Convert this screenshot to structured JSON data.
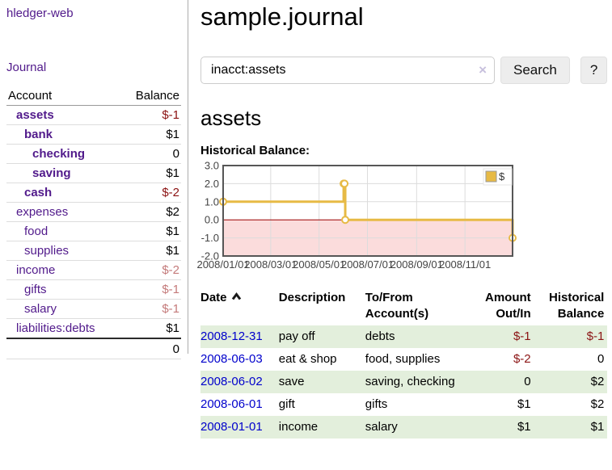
{
  "app": {
    "brand": "hledger-web"
  },
  "sidebar": {
    "journal_link": "Journal",
    "accounts": {
      "header_account": "Account",
      "header_balance": "Balance",
      "rows": [
        {
          "name": "assets",
          "balance": "$-1"
        },
        {
          "name": "bank",
          "balance": "$1"
        },
        {
          "name": "checking",
          "balance": "0"
        },
        {
          "name": "saving",
          "balance": "$1"
        },
        {
          "name": "cash",
          "balance": "$-2"
        },
        {
          "name": "expenses",
          "balance": "$2"
        },
        {
          "name": "food",
          "balance": "$1"
        },
        {
          "name": "supplies",
          "balance": "$1"
        },
        {
          "name": "income",
          "balance": "$-2"
        },
        {
          "name": "gifts",
          "balance": "$-1"
        },
        {
          "name": "salary",
          "balance": "$-1"
        },
        {
          "name": "liabilities:debts",
          "balance": "$1"
        }
      ],
      "total": "0"
    }
  },
  "header": {
    "title": "sample.journal"
  },
  "search": {
    "query": "inacct:assets",
    "clear_label": "×",
    "button": "Search",
    "help_button": "?"
  },
  "account_page": {
    "heading": "assets",
    "chart_label": "Historical Balance:"
  },
  "register": {
    "headers": {
      "date": "Date",
      "description": "Description",
      "accounts": "To/From Account(s)",
      "amount": "Amount Out/In",
      "balance": "Historical Balance"
    },
    "rows": [
      {
        "date": "2008-12-31",
        "description": "pay off",
        "accounts": "debts",
        "amount": "$-1",
        "balance": "$-1"
      },
      {
        "date": "2008-06-03",
        "description": "eat & shop",
        "accounts": "food, supplies",
        "amount": "$-2",
        "balance": "0"
      },
      {
        "date": "2008-06-02",
        "description": "save",
        "accounts": "saving, checking",
        "amount": "0",
        "balance": "$2"
      },
      {
        "date": "2008-06-01",
        "description": "gift",
        "accounts": "gifts",
        "amount": "$1",
        "balance": "$2"
      },
      {
        "date": "2008-01-01",
        "description": "income",
        "accounts": "salary",
        "amount": "$1",
        "balance": "$1"
      }
    ]
  },
  "chart_data": {
    "type": "line",
    "step": true,
    "title": "Historical Balance",
    "xlabel": "",
    "ylabel": "",
    "ylim": [
      -2,
      3
    ],
    "xlim_days": [
      0,
      365
    ],
    "y_ticks": [
      "3.0",
      "2.0",
      "1.0",
      "0.0",
      "-1.0",
      "-2.0"
    ],
    "x_ticks": [
      {
        "d": 0,
        "label": "2008/01/01"
      },
      {
        "d": 60,
        "label": "2008/03/01"
      },
      {
        "d": 121,
        "label": "2008/05/01"
      },
      {
        "d": 182,
        "label": "2008/07/01"
      },
      {
        "d": 244,
        "label": "2008/09/01"
      },
      {
        "d": 305,
        "label": "2008/11/01"
      }
    ],
    "series": [
      {
        "name": "$",
        "color": "#e7ba45",
        "points": [
          {
            "date": "2008-01-01",
            "d": 0,
            "v": 1
          },
          {
            "date": "2008-06-01",
            "d": 152,
            "v": 2
          },
          {
            "date": "2008-06-02",
            "d": 153,
            "v": 2
          },
          {
            "date": "2008-06-03",
            "d": 154,
            "v": 0
          },
          {
            "date": "2008-12-31",
            "d": 365,
            "v": -1
          }
        ]
      }
    ],
    "legend": "$",
    "legend_position": "top-right",
    "grid": true,
    "negative_fill": "#fbdcdc",
    "zero_line_color": "#990000",
    "border_color": "#565656",
    "grid_color": "#dcdcdc"
  }
}
